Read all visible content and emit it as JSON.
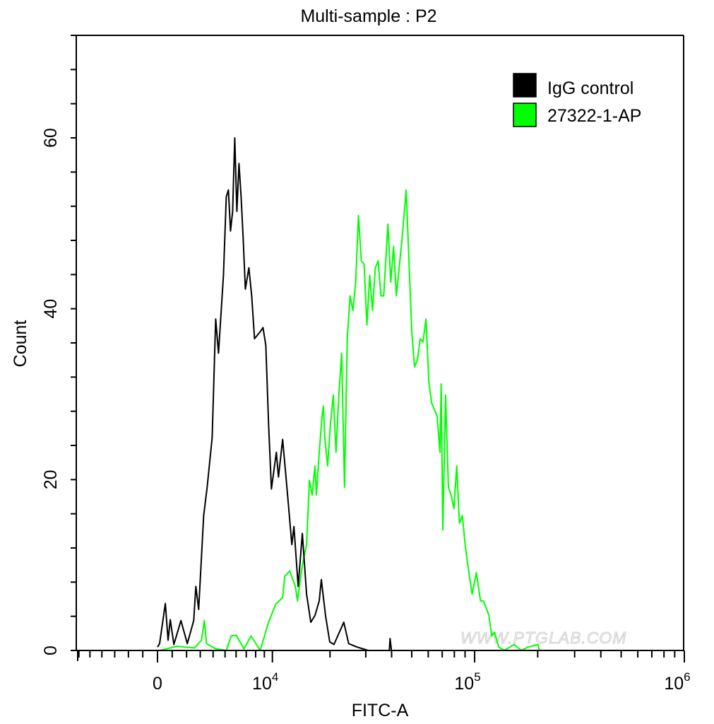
{
  "chart_data": {
    "type": "line",
    "title": "Multi-sample : P2",
    "xlabel": "FITC-A",
    "ylabel": "Count",
    "x_scale": "biexponential",
    "xlim": [
      -6300,
      1000000
    ],
    "ylim": [
      0,
      72
    ],
    "grid": false,
    "legend_position": "top-right",
    "x_major_ticks": [
      {
        "value": 0,
        "base": "0",
        "exp": ""
      },
      {
        "value": 10000,
        "base": "10",
        "exp": "4"
      },
      {
        "value": 100000,
        "base": "10",
        "exp": "5"
      },
      {
        "value": 1000000,
        "base": "10",
        "exp": "6"
      }
    ],
    "y_major_ticks": [
      0,
      20,
      40,
      60
    ],
    "y_minor_step": 4,
    "watermark": "WWW.PTGLAB.COM",
    "series": [
      {
        "name": "IgG control",
        "color": "#000000",
        "points": [
          [
            0,
            0.4
          ],
          [
            144,
            0.8
          ],
          [
            529,
            5.5
          ],
          [
            720,
            1.2
          ],
          [
            865,
            3.6
          ],
          [
            1112,
            0.7
          ],
          [
            1604,
            3.5
          ],
          [
            2054,
            0.8
          ],
          [
            2513,
            3.5
          ],
          [
            2669,
            7.5
          ],
          [
            2881,
            4.8
          ],
          [
            3257,
            15.8
          ],
          [
            3527,
            19.1
          ],
          [
            3920,
            24.9
          ],
          [
            4211,
            38.8
          ],
          [
            4442,
            34.8
          ],
          [
            4863,
            43.9
          ],
          [
            5109,
            53.1
          ],
          [
            5296,
            53.9
          ],
          [
            5486,
            49.1
          ],
          [
            5680,
            51.4
          ],
          [
            5877,
            60
          ],
          [
            6076,
            51.4
          ],
          [
            6278,
            57
          ],
          [
            6485,
            53.1
          ],
          [
            6695,
            48.1
          ],
          [
            6907,
            42.3
          ],
          [
            7271,
            44.8
          ],
          [
            7570,
            41.5
          ],
          [
            7875,
            36.5
          ],
          [
            8509,
            37.3
          ],
          [
            8839,
            37.8
          ],
          [
            9175,
            35.7
          ],
          [
            9522,
            26.5
          ],
          [
            9878,
            18.9
          ],
          [
            10520,
            23.2
          ],
          [
            10806,
            20.3
          ],
          [
            11392,
            24.7
          ],
          [
            12110,
            18.2
          ],
          [
            12752,
            12.4
          ],
          [
            13083,
            14.5
          ],
          [
            13767,
            7.5
          ],
          [
            14479,
            13.7
          ],
          [
            15223,
            6.6
          ],
          [
            15999,
            3.3
          ],
          [
            16809,
            4.1
          ],
          [
            17654,
            5.8
          ],
          [
            18092,
            8.3
          ],
          [
            18995,
            4.1
          ],
          [
            19938,
            1
          ],
          [
            20925,
            0.7
          ],
          [
            23403,
            3.3
          ],
          [
            24741,
            0.8
          ],
          [
            27205,
            0.4
          ],
          [
            30856,
            0
          ],
          [
            39000,
            0
          ],
          [
            39317,
            1.4
          ],
          [
            39929,
            0
          ]
        ]
      },
      {
        "name": "27322-1-AP",
        "color": "#00ff00",
        "points": [
          [
            144,
            0
          ],
          [
            626,
            0.2
          ],
          [
            1307,
            0.5
          ],
          [
            1903,
            0.4
          ],
          [
            2567,
            0.3
          ],
          [
            3094,
            1.2
          ],
          [
            3312,
            3.5
          ],
          [
            3476,
            0.8
          ],
          [
            4211,
            0.2
          ],
          [
            5109,
            0
          ],
          [
            5551,
            1.7
          ],
          [
            6009,
            1.8
          ],
          [
            6765,
            0.2
          ],
          [
            7494,
            1.7
          ],
          [
            8509,
            0
          ],
          [
            9522,
            3.3
          ],
          [
            10426,
            5.4
          ],
          [
            11392,
            6.2
          ],
          [
            11696,
            8.7
          ],
          [
            12429,
            9.3
          ],
          [
            13308,
            7.5
          ],
          [
            13651,
            5.8
          ],
          [
            14479,
            10
          ],
          [
            15223,
            12.4
          ],
          [
            15736,
            19.9
          ],
          [
            16265,
            18.2
          ],
          [
            16809,
            21.6
          ],
          [
            17088,
            18.2
          ],
          [
            17654,
            23.2
          ],
          [
            18239,
            27.4
          ],
          [
            18539,
            28.6
          ],
          [
            18842,
            24.9
          ],
          [
            19461,
            21.6
          ],
          [
            20100,
            26.5
          ],
          [
            20757,
            29.9
          ],
          [
            21435,
            23.2
          ],
          [
            22131,
            29.9
          ],
          [
            22849,
            34.8
          ],
          [
            23591,
            19.1
          ],
          [
            24351,
            36.5
          ],
          [
            25136,
            41.5
          ],
          [
            25946,
            39.8
          ],
          [
            26778,
            43.1
          ],
          [
            27638,
            50.9
          ],
          [
            28524,
            45.6
          ],
          [
            29434,
            45.2
          ],
          [
            30374,
            38.1
          ],
          [
            31344,
            43.9
          ],
          [
            32344,
            39.8
          ],
          [
            33370,
            44.8
          ],
          [
            34432,
            45.6
          ],
          [
            35527,
            41.5
          ],
          [
            36650,
            41.5
          ],
          [
            38407,
            49.9
          ],
          [
            39624,
            43.1
          ],
          [
            40877,
            47.3
          ],
          [
            42170,
            41.5
          ],
          [
            43504,
            44.8
          ],
          [
            44873,
            48.1
          ],
          [
            47015,
            53.9
          ],
          [
            48499,
            45.6
          ],
          [
            50023,
            37.3
          ],
          [
            51599,
            33.2
          ],
          [
            53227,
            34
          ],
          [
            54894,
            36.5
          ],
          [
            56623,
            36.1
          ],
          [
            58554,
            38.8
          ],
          [
            60381,
            31.5
          ],
          [
            62271,
            29
          ],
          [
            64221,
            28.2
          ],
          [
            66222,
            27.4
          ],
          [
            68291,
            23.2
          ],
          [
            69228,
            31.2
          ],
          [
            70432,
            14.1
          ],
          [
            72641,
            29.9
          ],
          [
            74903,
            19.1
          ],
          [
            77246,
            18.2
          ],
          [
            79665,
            16.6
          ],
          [
            82147,
            21.6
          ],
          [
            84612,
            14.9
          ],
          [
            87368,
            15.8
          ],
          [
            90090,
            12.4
          ],
          [
            92909,
            9.9
          ],
          [
            97306,
            6.6
          ],
          [
            101894,
            9.1
          ],
          [
            106712,
            5.8
          ],
          [
            110040,
            5.8
          ],
          [
            113483,
            5
          ],
          [
            117033,
            4.1
          ],
          [
            120679,
            1.7
          ],
          [
            124459,
            2.1
          ],
          [
            130343,
            0.4
          ],
          [
            138612,
            0
          ],
          [
            154350,
            0.7
          ],
          [
            166665,
            0
          ],
          [
            179991,
            0.4
          ],
          [
            200474,
            0.7
          ],
          [
            203588,
            0
          ]
        ]
      }
    ]
  }
}
